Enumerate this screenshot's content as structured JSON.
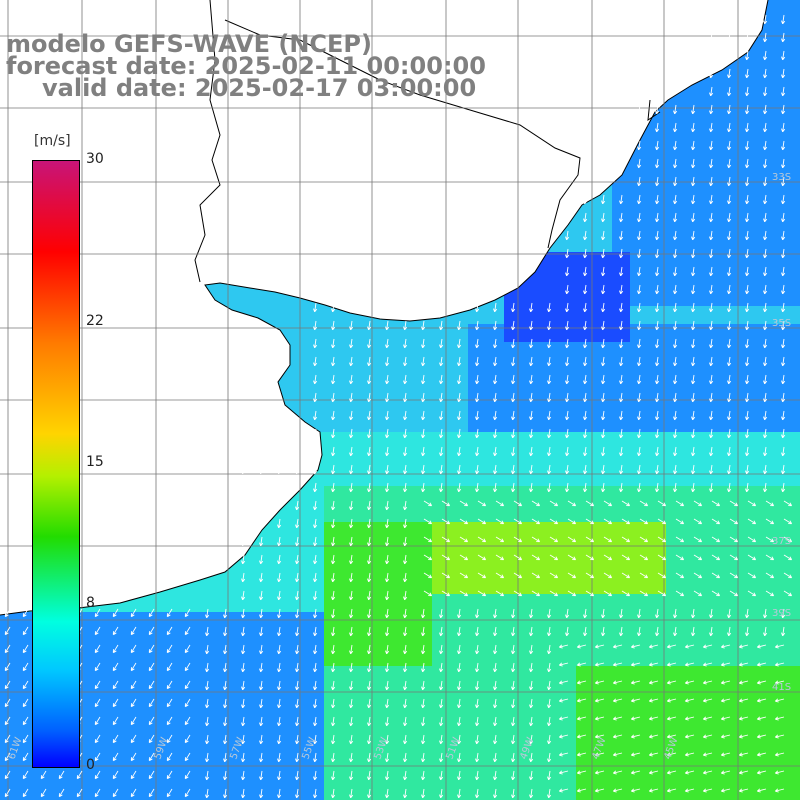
{
  "title": {
    "line1": "modelo GEFS-WAVE (NCEP)",
    "line2": "forecast date: 2025-02-11 00:00:00",
    "line3": "valid date: 2025-02-17 03:00:00"
  },
  "colorbar": {
    "unit": "[m/s]",
    "ticks": [
      {
        "label": "30",
        "value": 30
      },
      {
        "label": "22",
        "value": 22
      },
      {
        "label": "15",
        "value": 15
      },
      {
        "label": "8",
        "value": 8
      },
      {
        "label": "0",
        "value": 0
      }
    ],
    "range": [
      0,
      30
    ],
    "colors": [
      "#0000ff",
      "#0060ff",
      "#00c8ff",
      "#00ffe0",
      "#22dc00",
      "#b4f000",
      "#ffd400",
      "#ff7a00",
      "#ff0000",
      "#c81478"
    ]
  },
  "map": {
    "grid": true,
    "lon_labels": [
      "61W",
      "59W",
      "57W",
      "55W",
      "53W",
      "51W",
      "49W",
      "47W",
      "45W"
    ],
    "lat_labels": [
      "33S",
      "35S",
      "37S",
      "39S",
      "41S"
    ],
    "colors": {
      "land": "#ffffff",
      "coast": "#000000",
      "grid": "#777777",
      "arrow": "#ffffff",
      "deep_blue": "#1a4cff",
      "blue": "#1e90ff",
      "light_blue": "#2ec8f0",
      "cyan": "#2ee6e0",
      "teal": "#30e8a0",
      "green": "#3ee830",
      "yellow_green": "#8cf020"
    }
  }
}
